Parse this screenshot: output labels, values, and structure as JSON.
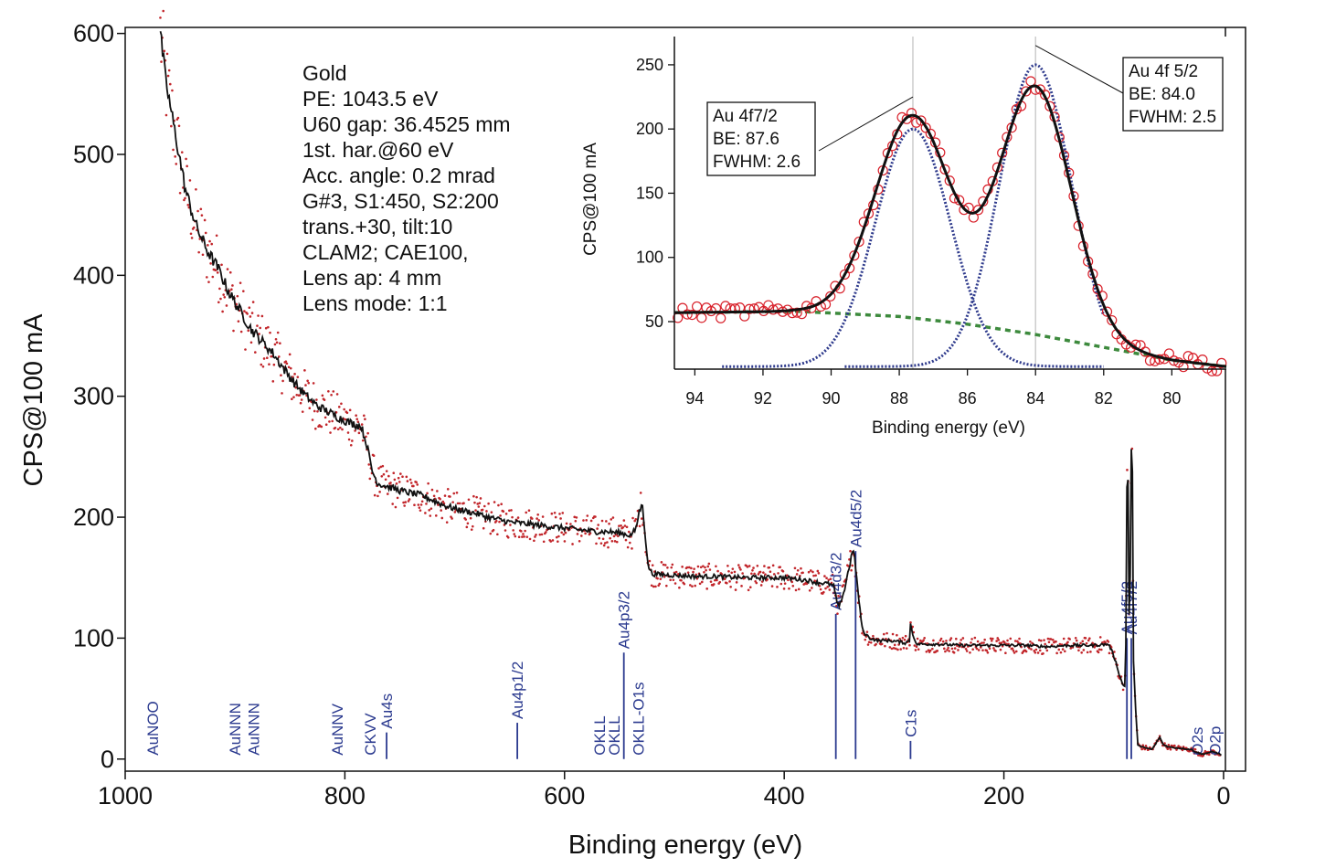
{
  "chart_data": [
    {
      "type": "line",
      "xlabel": "Binding energy (eV)",
      "ylabel": "CPS@100 mA",
      "xlim": [
        1000,
        -20
      ],
      "ylim": [
        -10,
        605
      ],
      "x_ticks": [
        1000,
        800,
        600,
        400,
        200,
        0
      ],
      "y_ticks": [
        0,
        100,
        200,
        300,
        400,
        500,
        600
      ],
      "series": [
        {
          "name": "survey",
          "style": "black line with red dot noise",
          "points": [
            [
              968,
              600
            ],
            [
              963,
              560
            ],
            [
              955,
              520
            ],
            [
              945,
              470
            ],
            [
              935,
              440
            ],
            [
              925,
              420
            ],
            [
              915,
              405
            ],
            [
              905,
              385
            ],
            [
              895,
              370
            ],
            [
              885,
              355
            ],
            [
              875,
              345
            ],
            [
              865,
              335
            ],
            [
              855,
              322
            ],
            [
              845,
              310
            ],
            [
              835,
              300
            ],
            [
              825,
              292
            ],
            [
              815,
              287
            ],
            [
              805,
              282
            ],
            [
              795,
              278
            ],
            [
              785,
              275
            ],
            [
              780,
              260
            ],
            [
              775,
              238
            ],
            [
              770,
              228
            ],
            [
              760,
              225
            ],
            [
              750,
              222
            ],
            [
              740,
              220
            ],
            [
              730,
              218
            ],
            [
              720,
              214
            ],
            [
              710,
              210
            ],
            [
              700,
              207
            ],
            [
              690,
              205
            ],
            [
              680,
              203
            ],
            [
              670,
              200
            ],
            [
              660,
              198
            ],
            [
              650,
              196
            ],
            [
              640,
              195
            ],
            [
              630,
              194
            ],
            [
              620,
              193
            ],
            [
              610,
              192
            ],
            [
              600,
              191
            ],
            [
              590,
              190
            ],
            [
              580,
              189
            ],
            [
              570,
              188
            ],
            [
              560,
              188
            ],
            [
              550,
              187
            ],
            [
              545,
              186
            ],
            [
              540,
              185
            ],
            [
              535,
              190
            ],
            [
              532,
              205
            ],
            [
              529,
              210
            ],
            [
              526,
              180
            ],
            [
              524,
              160
            ],
            [
              520,
              153
            ],
            [
              500,
              152
            ],
            [
              480,
              151
            ],
            [
              460,
              151
            ],
            [
              440,
              150
            ],
            [
              420,
              150
            ],
            [
              400,
              150
            ],
            [
              380,
              148
            ],
            [
              370,
              146
            ],
            [
              360,
              145
            ],
            [
              355,
              143
            ],
            [
              352,
              130
            ],
            [
              350,
              125
            ],
            [
              347,
              135
            ],
            [
              345,
              140
            ],
            [
              343,
              150
            ],
            [
              340,
              162
            ],
            [
              338,
              172
            ],
            [
              336,
              168
            ],
            [
              333,
              140
            ],
            [
              330,
              115
            ],
            [
              328,
              105
            ],
            [
              322,
              100
            ],
            [
              315,
              98
            ],
            [
              305,
              98
            ],
            [
              295,
              97
            ],
            [
              290,
              96
            ],
            [
              286,
              98
            ],
            [
              285,
              112
            ],
            [
              283,
              104
            ],
            [
              280,
              95
            ],
            [
              260,
              95
            ],
            [
              240,
              94
            ],
            [
              220,
              94
            ],
            [
              200,
              94
            ],
            [
              180,
              94
            ],
            [
              160,
              93
            ],
            [
              140,
              94
            ],
            [
              120,
              94
            ],
            [
              105,
              95
            ],
            [
              102,
              90
            ],
            [
              98,
              80
            ],
            [
              95,
              70
            ],
            [
              92,
              62
            ],
            [
              90,
              60
            ],
            [
              89,
              95
            ],
            [
              88,
              225
            ],
            [
              87,
              230
            ],
            [
              86,
              120
            ],
            [
              85,
              150
            ],
            [
              84,
              255
            ],
            [
              83,
              240
            ],
            [
              82,
              80
            ],
            [
              80,
              40
            ],
            [
              78,
              12
            ],
            [
              75,
              10
            ],
            [
              65,
              8
            ],
            [
              58,
              18
            ],
            [
              55,
              12
            ],
            [
              50,
              10
            ],
            [
              40,
              9
            ],
            [
              30,
              8
            ],
            [
              25,
              6
            ],
            [
              20,
              4
            ],
            [
              15,
              5
            ],
            [
              10,
              6
            ],
            [
              5,
              5
            ],
            [
              2,
              3
            ]
          ]
        }
      ],
      "peak_labels": [
        {
          "label": "AuNOO",
          "be": 975,
          "height": 0
        },
        {
          "label": "AuNNN",
          "be": 900,
          "height": 0
        },
        {
          "label": "AuNNN",
          "be": 883,
          "height": 0
        },
        {
          "label": "AuNNV",
          "be": 807,
          "height": 0
        },
        {
          "label": "CKVV",
          "be": 777,
          "height": 0
        },
        {
          "label": "Au4s",
          "be": 762,
          "height": 22
        },
        {
          "label": "Au4p1/2",
          "be": 643,
          "height": 30
        },
        {
          "label": "OKLL",
          "be": 568,
          "height": 0
        },
        {
          "label": "OKLL",
          "be": 555,
          "height": 0
        },
        {
          "label": "Au4p3/2",
          "be": 546,
          "height": 88
        },
        {
          "label": "OKLL-O1s",
          "be": 533,
          "height": 0
        },
        {
          "label": "Au4d3/2",
          "be": 353,
          "height": 120
        },
        {
          "label": "Au4d5/2",
          "be": 335,
          "height": 172
        },
        {
          "label": "C1s",
          "be": 285,
          "height": 15
        },
        {
          "label": "Au4f5/2",
          "be": 88,
          "height": 100
        },
        {
          "label": "Au4f7/2",
          "be": 84,
          "height": 100
        },
        {
          "label": "O2s",
          "be": 24,
          "height": 0
        },
        {
          "label": "O2p",
          "be": 8,
          "height": 0
        }
      ],
      "annotation_lines": [
        "Gold",
        "PE: 1043.5 eV",
        "U60 gap: 36.4525 mm",
        "1st. har.@60 eV",
        "Acc. angle: 0.2 mrad",
        "G#3, S1:450, S2:200",
        "trans.+30, tilt:10",
        "CLAM2; CAE100,",
        "Lens ap: 4 mm",
        "Lens mode: 1:1"
      ]
    },
    {
      "type": "line",
      "xlabel": "Binding energy (eV)",
      "ylabel": "CPS@100 mA",
      "xlim": [
        94.6,
        78.4
      ],
      "ylim": [
        13,
        272
      ],
      "x_ticks": [
        94,
        92,
        90,
        88,
        86,
        84,
        82,
        80
      ],
      "y_ticks": [
        50,
        100,
        150,
        200,
        250
      ],
      "series": [
        {
          "name": "data",
          "style": "red open circles"
        },
        {
          "name": "fit envelope",
          "style": "black line"
        },
        {
          "name": "Au 4f7/2 component",
          "style": "blue dotted",
          "center": 87.6,
          "fwhm": 2.6,
          "amplitude": 200,
          "base": 15
        },
        {
          "name": "Au 4f5/2 component",
          "style": "blue dotted",
          "center": 84.0,
          "fwhm": 2.5,
          "amplitude": 250,
          "base": 15
        },
        {
          "name": "background",
          "style": "green dashed",
          "points": [
            [
              94.6,
              57
            ],
            [
              91,
              58
            ],
            [
              88,
              54
            ],
            [
              86,
              48
            ],
            [
              84,
              40
            ],
            [
              82,
              30
            ],
            [
              80,
              20
            ],
            [
              78.4,
              15
            ]
          ]
        }
      ],
      "vertical_lines": [
        87.6,
        84.0
      ],
      "peak_boxes": [
        {
          "lines": [
            "Au 4f7/2",
            "BE: 87.6",
            "FWHM: 2.6"
          ]
        },
        {
          "lines": [
            "Au 4f 5/2",
            "BE: 84.0",
            "FWHM: 2.5"
          ]
        }
      ]
    }
  ]
}
